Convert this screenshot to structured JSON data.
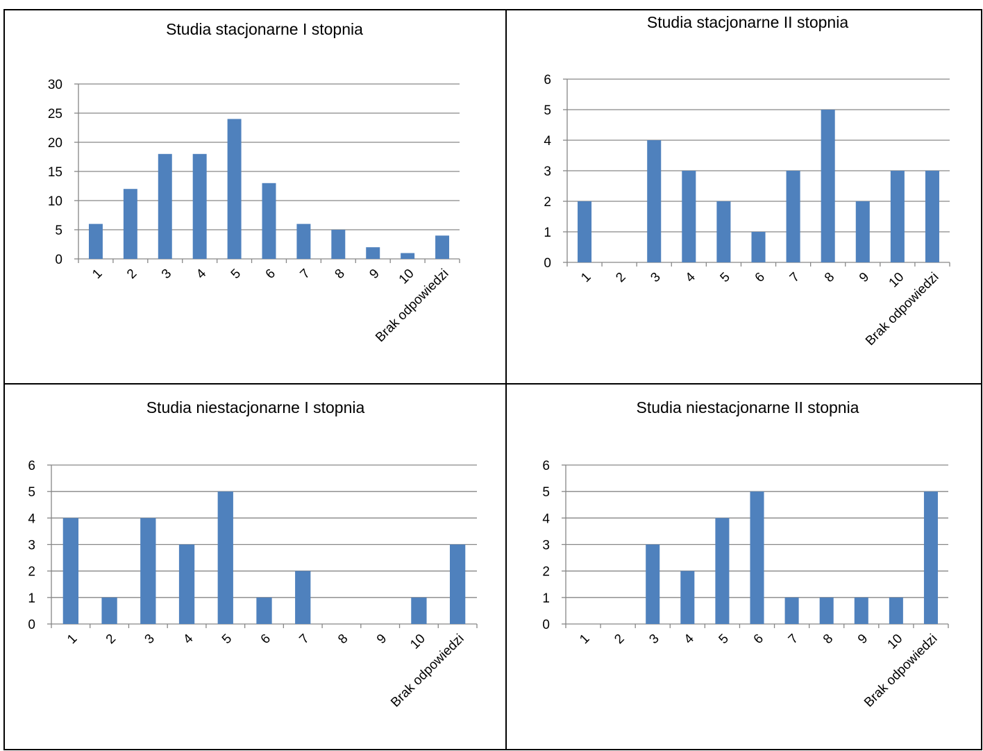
{
  "colors": {
    "bar": "#4f81bd",
    "grid": "#868686",
    "border": "#000000"
  },
  "chart_data": [
    {
      "type": "bar",
      "title": "Studia stacjonarne I stopnia",
      "categories": [
        "1",
        "2",
        "3",
        "4",
        "5",
        "6",
        "7",
        "8",
        "9",
        "10",
        "Brak odpowiedzi"
      ],
      "values": [
        6,
        12,
        18,
        18,
        24,
        13,
        6,
        5,
        2,
        1,
        4
      ],
      "ylim": [
        0,
        30
      ],
      "yticks": [
        0,
        5,
        10,
        15,
        20,
        25,
        30
      ],
      "grid": true,
      "legend": "none"
    },
    {
      "type": "bar",
      "title": "Studia stacjonarne II stopnia",
      "categories": [
        "1",
        "2",
        "3",
        "4",
        "5",
        "6",
        "7",
        "8",
        "9",
        "10",
        "Brak odpowiedzi"
      ],
      "values": [
        2,
        0,
        4,
        3,
        2,
        1,
        3,
        5,
        2,
        3,
        3
      ],
      "ylim": [
        0,
        6
      ],
      "yticks": [
        0,
        1,
        2,
        3,
        4,
        5,
        6
      ],
      "grid": true,
      "legend": "none"
    },
    {
      "type": "bar",
      "title": "Studia niestacjonarne I stopnia",
      "categories": [
        "1",
        "2",
        "3",
        "4",
        "5",
        "6",
        "7",
        "8",
        "9",
        "10",
        "Brak odpowiedzi"
      ],
      "values": [
        4,
        1,
        4,
        3,
        5,
        1,
        2,
        0,
        0,
        1,
        3
      ],
      "ylim": [
        0,
        6
      ],
      "yticks": [
        0,
        1,
        2,
        3,
        4,
        5,
        6
      ],
      "grid": true,
      "legend": "none"
    },
    {
      "type": "bar",
      "title": "Studia niestacjonarne II stopnia",
      "categories": [
        "1",
        "2",
        "3",
        "4",
        "5",
        "6",
        "7",
        "8",
        "9",
        "10",
        "Brak odpowiedzi"
      ],
      "values": [
        0,
        0,
        3,
        2,
        4,
        5,
        1,
        1,
        1,
        1,
        5
      ],
      "ylim": [
        0,
        6
      ],
      "yticks": [
        0,
        1,
        2,
        3,
        4,
        5,
        6
      ],
      "grid": true,
      "legend": "none"
    }
  ]
}
